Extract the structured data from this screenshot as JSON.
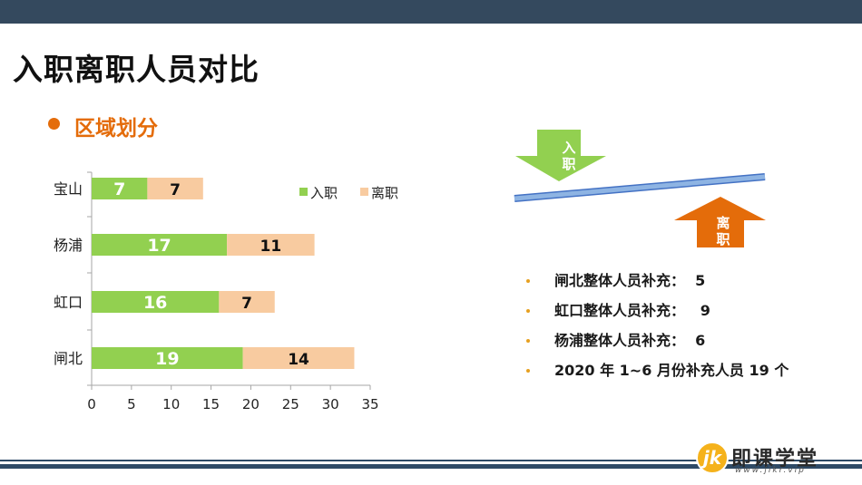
{
  "slide": {
    "title": "入职离职人员对比",
    "section_title": "区域划分"
  },
  "colors": {
    "header_bar": "#34495e",
    "accent_orange": "#e46c0a",
    "bar_entry": "#92d050",
    "bar_exit": "#f8cba0"
  },
  "chart_data": {
    "type": "bar",
    "orientation": "horizontal",
    "stacked": true,
    "categories": [
      "宝山",
      "杨浦",
      "虹口",
      "闸北"
    ],
    "series": [
      {
        "name": "入职",
        "values": [
          7,
          17,
          16,
          19
        ],
        "color": "#92d050"
      },
      {
        "name": "离职",
        "values": [
          7,
          11,
          7,
          14
        ],
        "color": "#f8cba0"
      }
    ],
    "xlim": [
      0,
      35
    ],
    "x_ticks": [
      0,
      5,
      10,
      15,
      20,
      25,
      30,
      35
    ],
    "legend_position": "top-right",
    "grid": false
  },
  "diagram": {
    "arrow_down_label": "入职",
    "arrow_up_label": "离职",
    "arrow_down_color": "#92d050",
    "arrow_up_color": "#e46c0a",
    "beam_color": "#8eb4e3"
  },
  "bullets": [
    "闸北整体人员补充：  5",
    "虹口整体人员补充：   9",
    "杨浦整体人员补充：  6",
    "2020 年 1~6 月份补充人员 19 个"
  ],
  "logo": {
    "mark": "jk",
    "name": "即课学堂",
    "url": "www.jikr.vip"
  }
}
